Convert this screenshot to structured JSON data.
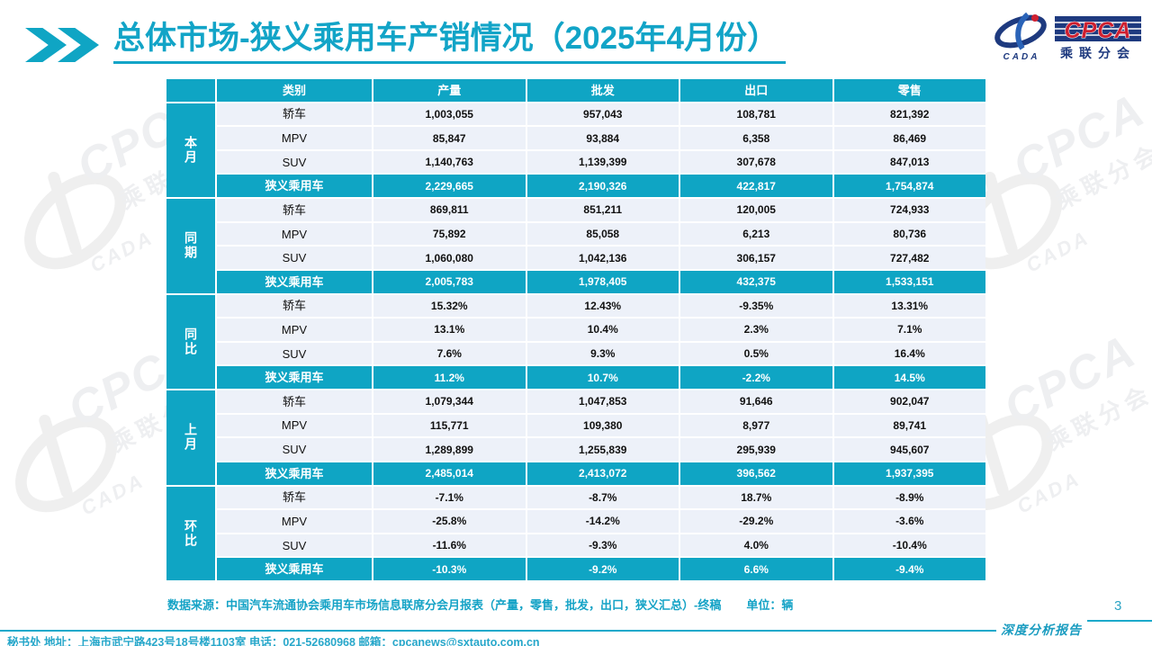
{
  "title": "总体市场-狭义乘用车产销情况（2025年4月份）",
  "logo": {
    "cpca": "CPCA",
    "cada": "CADA",
    "branch": "乘联分会"
  },
  "table": {
    "columns": [
      {
        "key": "category",
        "label": "类别"
      },
      {
        "key": "production",
        "label": "产量"
      },
      {
        "key": "wholesale",
        "label": "批发"
      },
      {
        "key": "export",
        "label": "出口"
      },
      {
        "key": "retail",
        "label": "零售"
      }
    ],
    "groups": [
      {
        "key": "this-month",
        "label": "本月",
        "rows": [
          {
            "category": "轿车",
            "values": [
              "1,003,055",
              "957,043",
              "108,781",
              "821,392"
            ]
          },
          {
            "category": "MPV",
            "values": [
              "85,847",
              "93,884",
              "6,358",
              "86,469"
            ]
          },
          {
            "category": "SUV",
            "values": [
              "1,140,763",
              "1,139,399",
              "307,678",
              "847,013"
            ]
          }
        ],
        "summary": {
          "label": "狭义乘用车",
          "values": [
            "2,229,665",
            "2,190,326",
            "422,817",
            "1,754,874"
          ]
        }
      },
      {
        "key": "same-period",
        "label": "同期",
        "rows": [
          {
            "category": "轿车",
            "values": [
              "869,811",
              "851,211",
              "120,005",
              "724,933"
            ]
          },
          {
            "category": "MPV",
            "values": [
              "75,892",
              "85,058",
              "6,213",
              "80,736"
            ]
          },
          {
            "category": "SUV",
            "values": [
              "1,060,080",
              "1,042,136",
              "306,157",
              "727,482"
            ]
          }
        ],
        "summary": {
          "label": "狭义乘用车",
          "values": [
            "2,005,783",
            "1,978,405",
            "432,375",
            "1,533,151"
          ]
        }
      },
      {
        "key": "yoy",
        "label": "同比",
        "rows": [
          {
            "category": "轿车",
            "values": [
              "15.32%",
              "12.43%",
              "-9.35%",
              "13.31%"
            ]
          },
          {
            "category": "MPV",
            "values": [
              "13.1%",
              "10.4%",
              "2.3%",
              "7.1%"
            ]
          },
          {
            "category": "SUV",
            "values": [
              "7.6%",
              "9.3%",
              "0.5%",
              "16.4%"
            ]
          }
        ],
        "summary": {
          "label": "狭义乘用车",
          "values": [
            "11.2%",
            "10.7%",
            "-2.2%",
            "14.5%"
          ]
        }
      },
      {
        "key": "last-month",
        "label": "上月",
        "rows": [
          {
            "category": "轿车",
            "values": [
              "1,079,344",
              "1,047,853",
              "91,646",
              "902,047"
            ]
          },
          {
            "category": "MPV",
            "values": [
              "115,771",
              "109,380",
              "8,977",
              "89,741"
            ]
          },
          {
            "category": "SUV",
            "values": [
              "1,289,899",
              "1,255,839",
              "295,939",
              "945,607"
            ]
          }
        ],
        "summary": {
          "label": "狭义乘用车",
          "values": [
            "2,485,014",
            "2,413,072",
            "396,562",
            "1,937,395"
          ]
        }
      },
      {
        "key": "mom",
        "label": "环比",
        "rows": [
          {
            "category": "轿车",
            "values": [
              "-7.1%",
              "-8.7%",
              "18.7%",
              "-8.9%"
            ]
          },
          {
            "category": "MPV",
            "values": [
              "-25.8%",
              "-14.2%",
              "-29.2%",
              "-3.6%"
            ]
          },
          {
            "category": "SUV",
            "values": [
              "-11.6%",
              "-9.3%",
              "4.0%",
              "-10.4%"
            ]
          }
        ],
        "summary": {
          "label": "狭义乘用车",
          "values": [
            "-10.3%",
            "-9.2%",
            "6.6%",
            "-9.4%"
          ]
        }
      }
    ]
  },
  "footer": {
    "source": "数据来源：中国汽车流通协会乘用车市场信息联席分会月报表（产量，零售，批发，出口，狭义汇总）-终稿",
    "unit": "单位：辆"
  },
  "bottom_bar": {
    "text": "秘书处  地址：上海市武宁路423号18号楼1103室  电话：021-52680968   邮箱：cpcanews@sxtauto.com.cn"
  },
  "page": {
    "number": "3",
    "report_label": "深度分析报告"
  },
  "colors": {
    "teal": "#0fa5c4",
    "navy": "#1e3a7f",
    "red": "#cf2030",
    "row_bg": "#edf1f9",
    "watermark": "#efefef"
  }
}
